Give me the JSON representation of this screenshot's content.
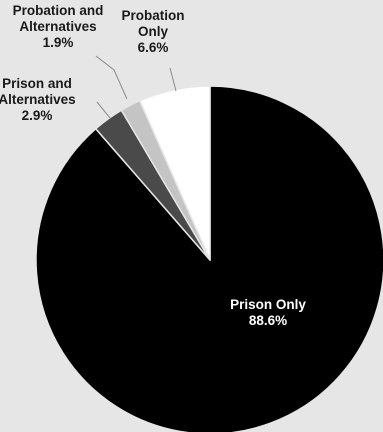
{
  "chart_data": {
    "type": "pie",
    "start_angle_deg": 0,
    "direction": "clockwise",
    "slices": [
      {
        "name": "Prison Only",
        "label_lines": [
          "Prison Only"
        ],
        "value": 88.6,
        "value_label": "88.6%",
        "color": "#000000",
        "label_position": "inside"
      },
      {
        "name": "Prison and Alternatives",
        "label_lines": [
          "Prison and",
          "Alternatives"
        ],
        "value": 2.9,
        "value_label": "2.9%",
        "color": "#4a4a4a",
        "label_position": "outside-left"
      },
      {
        "name": "Probation and Alternatives",
        "label_lines": [
          "Probation and",
          "Alternatives"
        ],
        "value": 1.9,
        "value_label": "1.9%",
        "color": "#c4c4c4",
        "label_position": "outside-top-left"
      },
      {
        "name": "Probation Only",
        "label_lines": [
          "Probation",
          "Only"
        ],
        "value": 6.6,
        "value_label": "6.6%",
        "color": "#ffffff",
        "label_position": "outside-top"
      }
    ],
    "slice_border_color": "#e6e6e6",
    "leader_line_color": "#8c8c8c"
  }
}
